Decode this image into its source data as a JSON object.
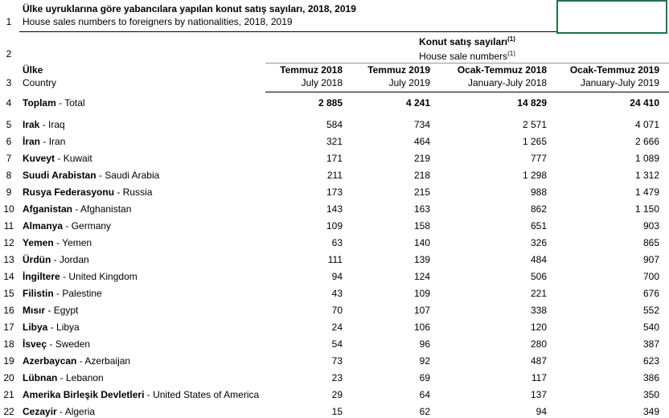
{
  "title": {
    "tr": "Ülke uyruklarına göre yabancılara yapılan konut satış sayıları, 2018, 2019",
    "en": "House sales numbers to foreigners by nationalities, 2018, 2019"
  },
  "header": {
    "group_tr": "Konut satış sayıları",
    "group_en": "House sale numbers",
    "footnote": "(1)",
    "country_tr": "Ülke",
    "country_en": "Country",
    "columns": [
      {
        "tr": "Temmuz 2018",
        "en": "July 2018"
      },
      {
        "tr": "Temmuz 2019",
        "en": "July 2019"
      },
      {
        "tr": "Ocak-Temmuz 2018",
        "en": "January-July 2018"
      },
      {
        "tr": "Ocak-Temmuz 2019",
        "en": "January-July 2019"
      }
    ]
  },
  "row_numbers": [
    1,
    2,
    3,
    4,
    5,
    6,
    7,
    8,
    9,
    10,
    11,
    12,
    13,
    14,
    15,
    16,
    17,
    18,
    19,
    20,
    21,
    22
  ],
  "rows": [
    {
      "tr": "Toplam",
      "en": "- Total",
      "values": [
        "2 885",
        "4 241",
        "14 829",
        "24 410"
      ]
    },
    {
      "tr": "Irak",
      "en": "- Iraq",
      "values": [
        "584",
        "734",
        "2 571",
        "4 071"
      ]
    },
    {
      "tr": "İran",
      "en": "- Iran",
      "values": [
        "321",
        "464",
        "1 265",
        "2 666"
      ]
    },
    {
      "tr": "Kuveyt",
      "en": "- Kuwait",
      "values": [
        "171",
        "219",
        "777",
        "1 089"
      ]
    },
    {
      "tr": "Suudi Arabistan",
      "en": "- Saudi Arabia",
      "values": [
        "211",
        "218",
        "1 298",
        "1 312"
      ]
    },
    {
      "tr": "Rusya Federasyonu",
      "en": "- Russia",
      "values": [
        "173",
        "215",
        "988",
        "1 479"
      ]
    },
    {
      "tr": "Afganistan",
      "en": "- Afghanistan",
      "values": [
        "143",
        "163",
        "862",
        "1 150"
      ]
    },
    {
      "tr": "Almanya",
      "en": "- Germany",
      "values": [
        "109",
        "158",
        "651",
        "903"
      ]
    },
    {
      "tr": "Yemen",
      "en": "- Yemen",
      "values": [
        "63",
        "140",
        "326",
        "865"
      ]
    },
    {
      "tr": "Ürdün",
      "en": "- Jordan",
      "values": [
        "111",
        "139",
        "484",
        "907"
      ]
    },
    {
      "tr": "İngiltere",
      "en": "- United Kingdom",
      "values": [
        "94",
        "124",
        "506",
        "700"
      ]
    },
    {
      "tr": "Filistin",
      "en": "- Palestine",
      "values": [
        "43",
        "109",
        "221",
        "676"
      ]
    },
    {
      "tr": "Mısır",
      "en": "- Egypt",
      "values": [
        "70",
        "107",
        "338",
        "552"
      ]
    },
    {
      "tr": "Libya",
      "en": "- Libya",
      "values": [
        "24",
        "106",
        "120",
        "540"
      ]
    },
    {
      "tr": "İsveç",
      "en": "- Sweden",
      "values": [
        "54",
        "96",
        "280",
        "387"
      ]
    },
    {
      "tr": "Azerbaycan",
      "en": "- Azerbaijan",
      "values": [
        "73",
        "92",
        "487",
        "623"
      ]
    },
    {
      "tr": "Lübnan",
      "en": "- Lebanon",
      "values": [
        "23",
        "69",
        "117",
        "386"
      ]
    },
    {
      "tr": "Amerika Birleşik Devletleri",
      "en": "- United States of America",
      "values": [
        "29",
        "64",
        "137",
        "350"
      ]
    },
    {
      "tr": "Cezayir",
      "en": "- Algeria",
      "values": [
        "15",
        "62",
        "94",
        "349"
      ]
    }
  ]
}
